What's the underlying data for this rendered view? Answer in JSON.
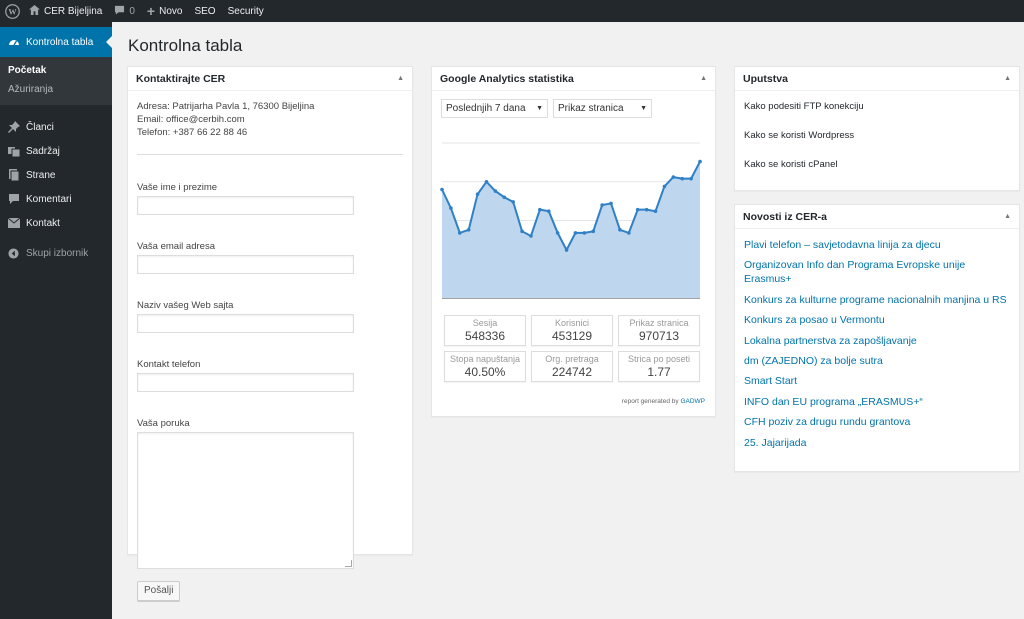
{
  "adminbar": {
    "site_name": "CER Bijeljina",
    "comments_count": "0",
    "new_label": "Novo",
    "seo_label": "SEO",
    "security_label": "Security"
  },
  "sidebar": {
    "dashboard_label": "Kontrolna tabla",
    "submenu": [
      "Početak",
      "Ažuriranja"
    ],
    "items": [
      "Članci",
      "Sadržaj",
      "Strane",
      "Komentari",
      "Kontakt"
    ],
    "collapse_label": "Skupi izbornik"
  },
  "page": {
    "title": "Kontrolna tabla"
  },
  "contact_box": {
    "title": "Kontaktirajte CER",
    "address": "Adresa: Patrijarha Pavla 1, 76300 Bijeljina",
    "email": "Email: office@cerbih.com",
    "phone": "Telefon: +387 66 22 88 46",
    "field_name_label": "Vaše ime i prezime",
    "field_email_label": "Vaša email adresa",
    "field_site_label": "Naziv vašeg Web sajta",
    "field_phone_label": "Kontakt telefon",
    "field_message_label": "Vaša poruka",
    "submit_label": "Pošalji"
  },
  "ga_box": {
    "title": "Google Analytics statistika",
    "period_select": "Poslednjih 7 dana",
    "metric_select": "Prikaz stranica",
    "stats": [
      {
        "label": "Sesija",
        "value": "548336"
      },
      {
        "label": "Korisnici",
        "value": "453129"
      },
      {
        "label": "Prikaz stranica",
        "value": "970713"
      },
      {
        "label": "Stopa napuštanja",
        "value": "40.50%"
      },
      {
        "label": "Org. pretraga",
        "value": "224742"
      },
      {
        "label": "Strica po poseti",
        "value": "1.77"
      }
    ],
    "footer_text": "report generated by",
    "footer_link": "GADWP",
    "accent_color": "#2f80c7",
    "fill_color": "#bfd7ee"
  },
  "chart_data": {
    "type": "area",
    "ylim": [
      0,
      100
    ],
    "gridlines": 4,
    "values": [
      70,
      58,
      42,
      44,
      67,
      75,
      69,
      65,
      62,
      43,
      40,
      57,
      56,
      42,
      31,
      42,
      42,
      43,
      60,
      61,
      44,
      42,
      57,
      57,
      56,
      72,
      78,
      77,
      77,
      88
    ]
  },
  "upu_box": {
    "title": "Uputstva",
    "items": [
      "Kako podesiti FTP konekciju",
      "Kako se koristi Wordpress",
      "Kako se koristi cPanel"
    ]
  },
  "news_box": {
    "title": "Novosti iz CER-a",
    "items": [
      "Plavi telefon – savjetodavna linija za djecu",
      "Organizovan Info dan Programa Evropske unije Erasmus+",
      "Konkurs za kulturne programe nacionalnih manjina u RS",
      "Konkurs za posao u Vermontu",
      "Lokalna partnerstva za zapošljavanje",
      "dm (ZAJEDNO) za bolje sutra",
      "Smart Start",
      "INFO dan EU programa „ERASMUS+“",
      "CFH poziv za drugu rundu grantova",
      "25. Jajarijada"
    ]
  }
}
